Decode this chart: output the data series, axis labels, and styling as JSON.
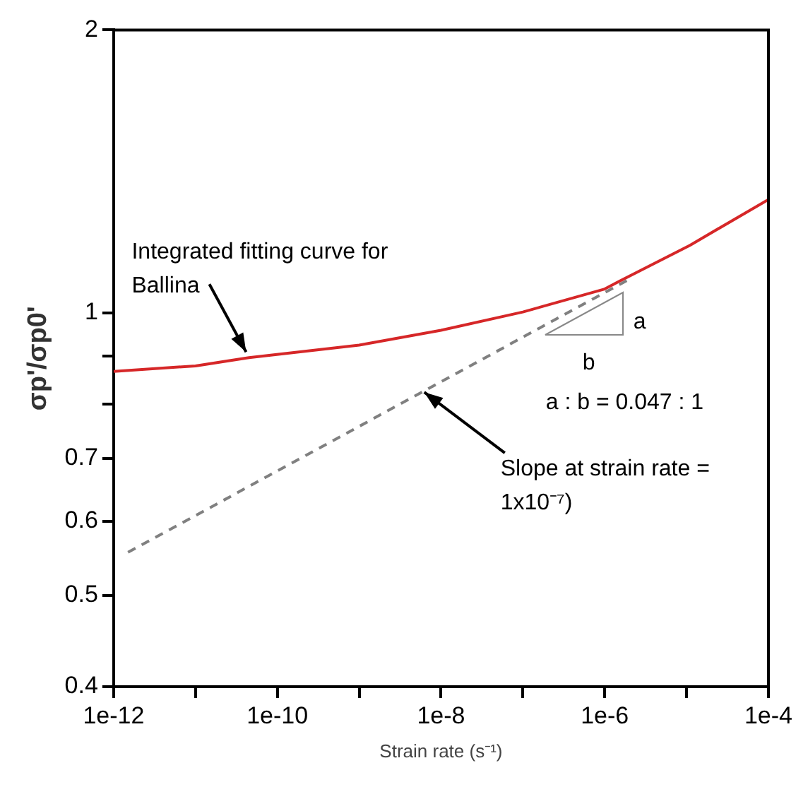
{
  "chart_data": {
    "type": "line",
    "xlabel": "Strain rate (s⁻¹)",
    "ylabel": "σp'/σp0'",
    "log": "xy",
    "grid": false,
    "legend": false,
    "marker": "none",
    "xlim": [
      1e-12,
      0.0001
    ],
    "xticks": [
      {
        "value": 1e-12,
        "label": "1e-12"
      },
      {
        "value": 1e-11,
        "label": null
      },
      {
        "value": 1e-10,
        "label": "1e-10"
      },
      {
        "value": 1e-09,
        "label": null
      },
      {
        "value": 1e-08,
        "label": "1e-8"
      },
      {
        "value": 1e-07,
        "label": null
      },
      {
        "value": 1e-06,
        "label": "1e-6"
      },
      {
        "value": 1e-05,
        "label": null
      },
      {
        "value": 0.0001,
        "label": "1e-4"
      }
    ],
    "ylim": [
      0.4,
      2
    ],
    "yticks": [
      0.4,
      0.5,
      0.6,
      0.7,
      {
        "value": 0.8,
        "label": null
      },
      {
        "value": 0.9,
        "label": null
      },
      1,
      2
    ],
    "series": [
      {
        "type": "line",
        "color": "#d62728",
        "line_style": "solid",
        "x": [
          1e-12,
          1e-11,
          4.5e-11,
          1e-09,
          1e-08,
          1e-07,
          1e-06,
          1.5e-06,
          1.1e-05,
          0.0001
        ],
        "values": [
          0.866,
          0.878,
          0.896,
          0.924,
          0.958,
          1.002,
          1.06,
          1.08,
          1.18,
          1.32
        ]
      },
      {
        "type": "line",
        "color": "#808080",
        "line_style": "dashed",
        "x": [
          1.5e-12,
          2e-06
        ],
        "values": [
          0.556,
          1.086
        ]
      }
    ],
    "annotations": [
      {
        "text": "Integrated fitting curve for Ballina",
        "x": 4.5e-11,
        "y": 0.896
      },
      {
        "text": "Slope at strain rate = 1x10⁻⁷)",
        "x": 6e-09,
        "y": 0.826
      },
      "a",
      "b",
      "a : b = 0.047 : 1"
    ]
  }
}
